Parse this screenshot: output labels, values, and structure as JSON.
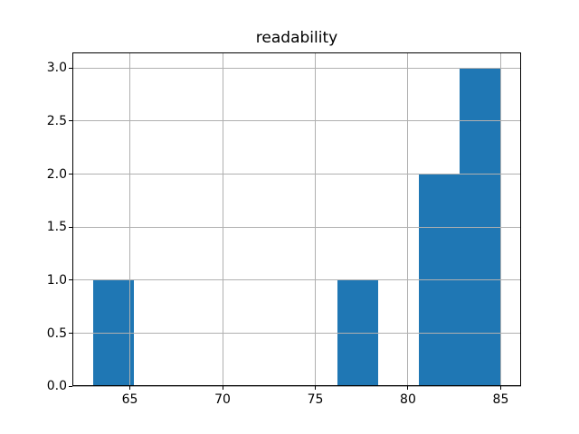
{
  "chart_data": {
    "type": "bar",
    "subtype": "histogram",
    "title": "readability",
    "xlabel": "",
    "ylabel": "",
    "bin_edges": [
      63.0,
      65.2,
      67.4,
      69.6,
      71.8,
      74.0,
      76.2,
      78.4,
      80.6,
      82.8,
      85.0
    ],
    "counts": [
      1,
      0,
      0,
      0,
      0,
      0,
      1,
      0,
      2,
      3
    ],
    "xlim": [
      61.9,
      86.1
    ],
    "ylim": [
      0,
      3.15
    ],
    "xticks": [
      65,
      70,
      75,
      80,
      85
    ],
    "xtick_labels": [
      "65",
      "70",
      "75",
      "80",
      "85"
    ],
    "yticks": [
      0.0,
      0.5,
      1.0,
      1.5,
      2.0,
      2.5,
      3.0
    ],
    "ytick_labels": [
      "0.0",
      "0.5",
      "1.0",
      "1.5",
      "2.0",
      "2.5",
      "3.0"
    ],
    "grid": true,
    "grid_above_bars": true,
    "legend": false,
    "colors": {
      "bar": "#1f77b4",
      "grid": "#b0b0b0",
      "spine": "#000000",
      "background": "#ffffff",
      "text": "#000000"
    }
  }
}
